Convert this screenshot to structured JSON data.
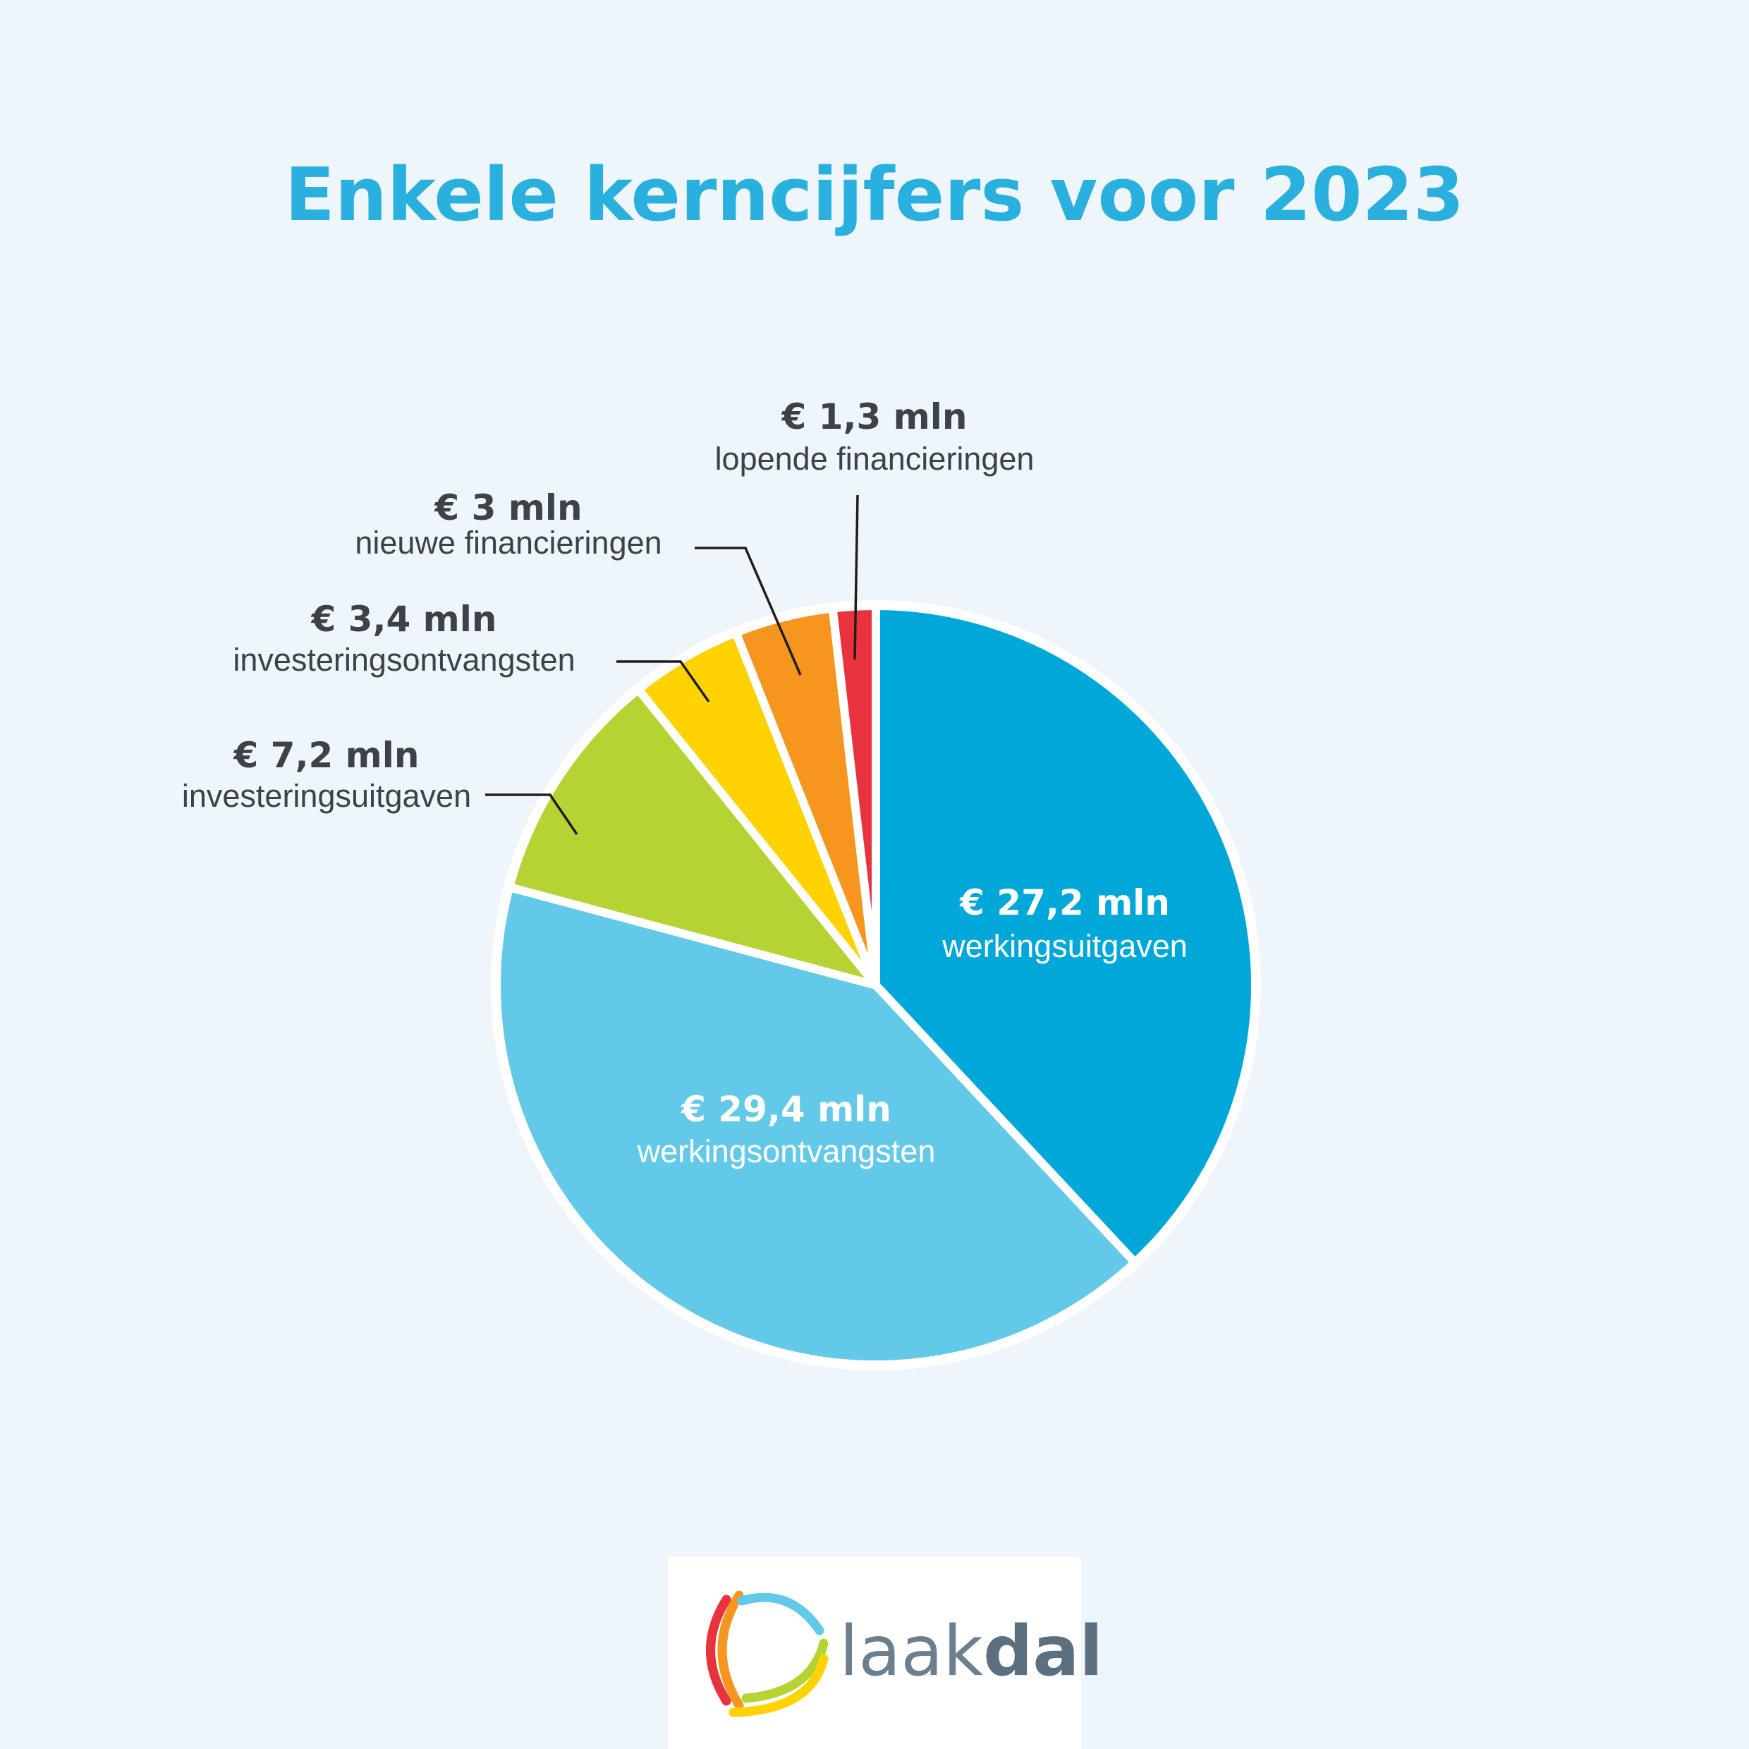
{
  "chart_data": {
    "type": "pie",
    "title": "Enkele kerncijfers voor 2023",
    "unit": "€ mln",
    "slices": [
      {
        "value": 27.2,
        "value_label": "€ 27,2 mln",
        "label": "werkingsuitgaven",
        "color": "#00a8d9"
      },
      {
        "value": 29.4,
        "value_label": "€ 29,4 mln",
        "label": "werkingsontvangsten",
        "color": "#63c9e8"
      },
      {
        "value": 7.2,
        "value_label": "€ 7,2 mln",
        "label": "investeringsuitgaven",
        "color": "#b6d334"
      },
      {
        "value": 3.4,
        "value_label": "€ 3,4 mln",
        "label": "investeringsontvangsten",
        "color": "#ffd200"
      },
      {
        "value": 3.0,
        "value_label": "€ 3 mln",
        "label": "nieuwe financieringen",
        "color": "#f6961e"
      },
      {
        "value": 1.3,
        "value_label": "€ 1,3 mln",
        "label": "lopende financieringen",
        "color": "#e8333f"
      }
    ]
  },
  "logo": {
    "text_light": "laak",
    "text_bold": "dal",
    "colors": [
      "#e8333f",
      "#f6961e",
      "#63c9e8",
      "#b6d334",
      "#ffd200"
    ]
  }
}
